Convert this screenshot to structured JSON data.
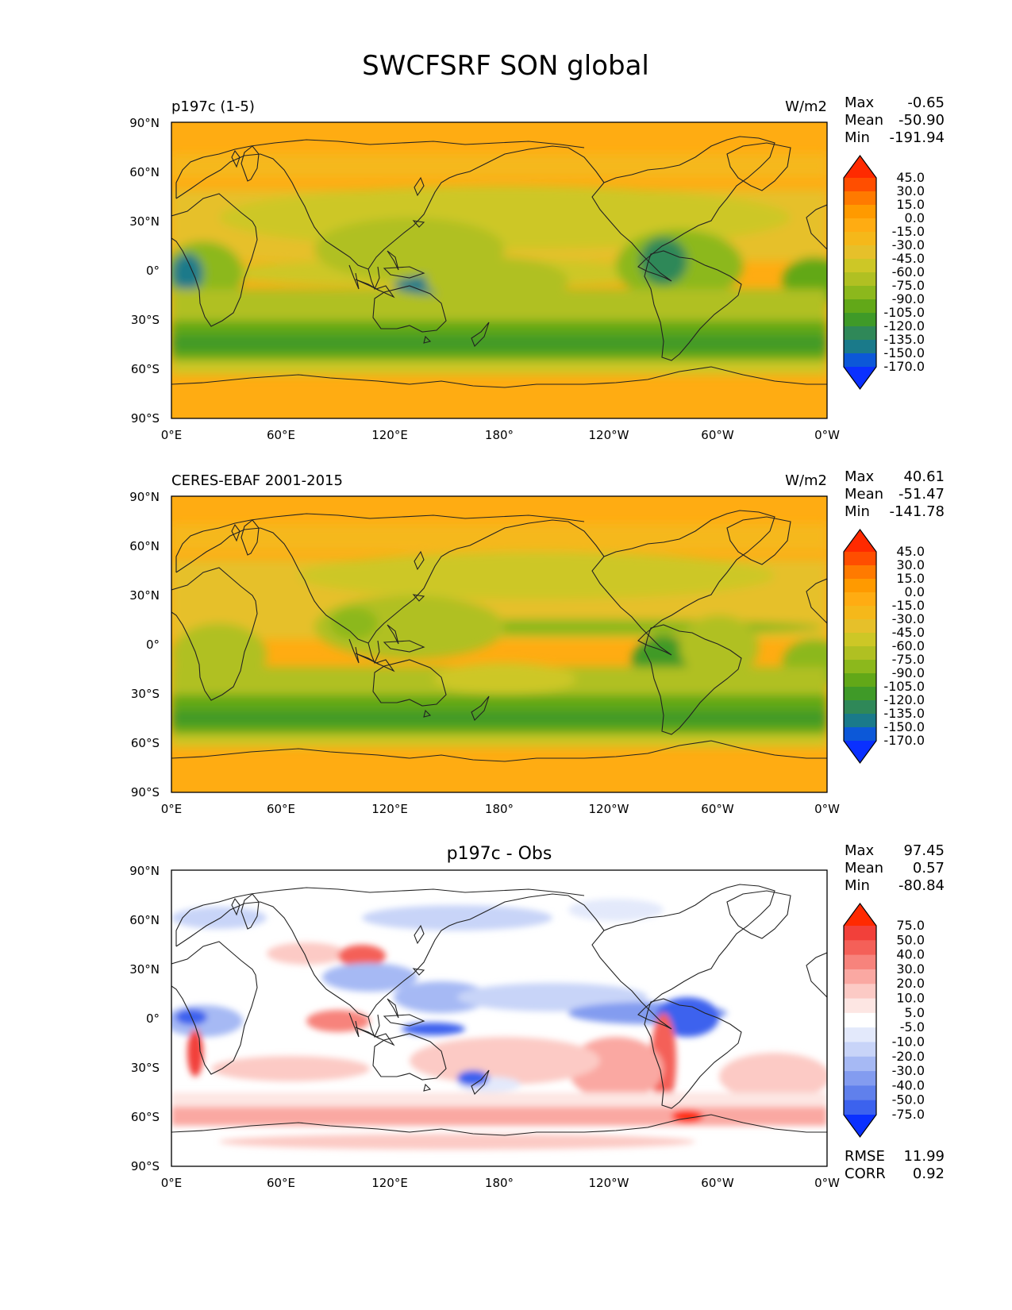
{
  "title": "SWCFSRF SON global",
  "x_ticks": [
    "0°E",
    "60°E",
    "120°E",
    "180°",
    "120°W",
    "60°W",
    "0°W"
  ],
  "y_ticks": [
    "90°N",
    "60°N",
    "30°N",
    "0°",
    "30°S",
    "60°S",
    "90°S"
  ],
  "stat_labels": {
    "max": "Max",
    "mean": "Mean",
    "min": "Min",
    "rmse": "RMSE",
    "corr": "CORR"
  },
  "chart_data": [
    {
      "type": "heatmap",
      "panel_label": "p197c (1-5)",
      "units": "W/m2",
      "stats": {
        "max": "-0.65",
        "mean": "-50.90",
        "min": "-191.94"
      },
      "colorbar_levels": [
        "45.0",
        "30.0",
        "15.0",
        "0.0",
        "-15.0",
        "-30.0",
        "-45.0",
        "-60.0",
        "-75.0",
        "-90.0",
        "-105.0",
        "-120.0",
        "-135.0",
        "-150.0",
        "-170.0"
      ],
      "colorbar_colors": [
        "#ff2a00",
        "#ff4e00",
        "#ff7a00",
        "#ff9a00",
        "#ffac12",
        "#f5b81a",
        "#e6c02a",
        "#cdc726",
        "#b0c022",
        "#8cb81c",
        "#62a818",
        "#3f9a28",
        "#2f8858",
        "#1a7a8a",
        "#0c58d8",
        "#0a30ff"
      ],
      "xlim": [
        0,
        360
      ],
      "ylim": [
        -90,
        90
      ]
    },
    {
      "type": "heatmap",
      "panel_label": "CERES-EBAF 2001-2015",
      "units": "W/m2",
      "stats": {
        "max": "40.61",
        "mean": "-51.47",
        "min": "-141.78"
      },
      "colorbar_levels": [
        "45.0",
        "30.0",
        "15.0",
        "0.0",
        "-15.0",
        "-30.0",
        "-45.0",
        "-60.0",
        "-75.0",
        "-90.0",
        "-105.0",
        "-120.0",
        "-135.0",
        "-150.0",
        "-170.0"
      ],
      "colorbar_colors": [
        "#ff2a00",
        "#ff4e00",
        "#ff7a00",
        "#ff9a00",
        "#ffac12",
        "#f5b81a",
        "#e6c02a",
        "#cdc726",
        "#b0c022",
        "#8cb81c",
        "#62a818",
        "#3f9a28",
        "#2f8858",
        "#1a7a8a",
        "#0c58d8",
        "#0a30ff"
      ],
      "xlim": [
        0,
        360
      ],
      "ylim": [
        -90,
        90
      ]
    },
    {
      "type": "heatmap",
      "panel_title": "p197c - Obs",
      "stats": {
        "max": "97.45",
        "mean": "0.57",
        "min": "-80.84",
        "rmse": "11.99",
        "corr": "0.92"
      },
      "colorbar_levels": [
        "75.0",
        "50.0",
        "40.0",
        "30.0",
        "20.0",
        "10.0",
        "5.0",
        "-5.0",
        "-10.0",
        "-20.0",
        "-30.0",
        "-40.0",
        "-50.0",
        "-75.0"
      ],
      "colorbar_colors": [
        "#ff2a00",
        "#f2403a",
        "#f46058",
        "#f7837c",
        "#faa8a2",
        "#fccac5",
        "#fde6e3",
        "#ffffff",
        "#e3e9fb",
        "#c8d4f8",
        "#a6b9f4",
        "#839cf0",
        "#6080ec",
        "#3c62ee",
        "#0a30ff"
      ],
      "xlim": [
        0,
        360
      ],
      "ylim": [
        -90,
        90
      ]
    }
  ]
}
